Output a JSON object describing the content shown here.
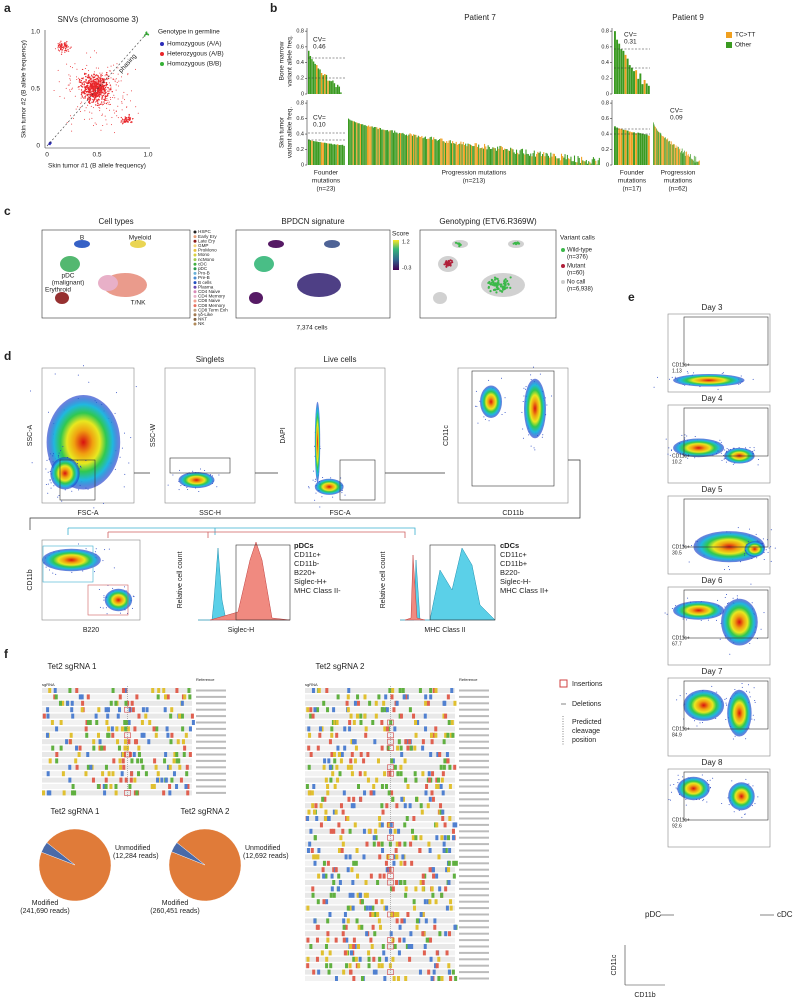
{
  "a": {
    "label": "a",
    "title": "SNVs (chromosome 3)",
    "x_label": "Skin tumor #1 (B allele frequency)",
    "y_label": "Skin tumor #2 (B allele frequency)",
    "x_ticks": [
      "0",
      "0.5",
      "1.0"
    ],
    "y_ticks": [
      "0",
      "0.5",
      "1.0"
    ],
    "annotation": "phasing",
    "legend_title": "Genotype in germline",
    "legend": [
      {
        "name": "Homozygous (A/A)",
        "color": "#2b2bb8"
      },
      {
        "name": "Heterozygous (A/B)",
        "color": "#e8262a"
      },
      {
        "name": "Homozygous (B/B)",
        "color": "#35b035"
      }
    ]
  },
  "b": {
    "label": "b",
    "patients": [
      "Patient 7",
      "Patient 9"
    ],
    "y_labels": [
      [
        "Bone marrow",
        "variant allele freq."
      ],
      [
        "Skin tumor",
        "variant allele freq."
      ]
    ],
    "y_ticks": [
      "0",
      "0.2",
      "0.4",
      "0.6",
      "0.8"
    ],
    "cv": [
      {
        "label": "CV=",
        "value": "0.46"
      },
      {
        "label": "CV=",
        "value": "0.10"
      },
      {
        "label": "CV=",
        "value": "0.31"
      },
      {
        "label": "CV=",
        "value": "0.09"
      }
    ],
    "groups": [
      [
        "Founder",
        "mutations",
        "(n=23)"
      ],
      [
        "Progression mutations",
        "(n=213)"
      ],
      [
        "Founder",
        "mutations",
        "(n=17)"
      ],
      [
        "Progression",
        "mutations",
        "(n=62)"
      ]
    ],
    "legend": [
      {
        "name": "TC>TT",
        "color": "#f0a020"
      },
      {
        "name": "Other",
        "color": "#3a9a20"
      }
    ]
  },
  "c": {
    "label": "c",
    "titles": [
      "Cell types",
      "BPDCN signature",
      "Genotyping (ETV6.R369W)"
    ],
    "clusters": [
      "B",
      "Myeloid",
      "pDC",
      "(malignant)",
      "Erythroid",
      "T/NK"
    ],
    "cell_types": [
      {
        "name": "HSPC",
        "color": "#222222"
      },
      {
        "name": "Early Ery",
        "color": "#e8a07a"
      },
      {
        "name": "Late Ery",
        "color": "#8b1a1a"
      },
      {
        "name": "GMP",
        "color": "#f2d27a"
      },
      {
        "name": "ProMono",
        "color": "#e8c040"
      },
      {
        "name": "Mono",
        "color": "#d8d040"
      },
      {
        "name": "ncMono",
        "color": "#a0c850"
      },
      {
        "name": "cDC",
        "color": "#40b040"
      },
      {
        "name": "pDC",
        "color": "#2a9a4a"
      },
      {
        "name": "Pro-B",
        "color": "#6ab0d8"
      },
      {
        "name": "Pre-B",
        "color": "#4a8ad0"
      },
      {
        "name": "B cells",
        "color": "#2050c0"
      },
      {
        "name": "Plasma",
        "color": "#6a4ab0"
      },
      {
        "name": "CD4 Naive",
        "color": "#d88ab8"
      },
      {
        "name": "CD4 Memory",
        "color": "#e8b0c8"
      },
      {
        "name": "CD8 Naive",
        "color": "#f0a090"
      },
      {
        "name": "CD8 Memory",
        "color": "#e87060"
      },
      {
        "name": "CD8 Term Exh",
        "color": "#c0a080"
      },
      {
        "name": "γδ-Like",
        "color": "#a07850"
      },
      {
        "name": "NKT",
        "color": "#806040"
      },
      {
        "name": "NK",
        "color": "#b08858"
      }
    ],
    "score_title": "Score",
    "score_ticks": [
      "1.2",
      "-0.3"
    ],
    "cell_count": "7,374 cells",
    "variant_title": "Variant calls",
    "variants": [
      {
        "name": "Wild-type",
        "count": "(n=376)",
        "color": "#3cb84a"
      },
      {
        "name": "Mutant",
        "count": "(n=60)",
        "color": "#b0203a"
      },
      {
        "name": "No call",
        "count": "(n=6,938)",
        "color": "#cccccc"
      }
    ]
  },
  "d": {
    "label": "d",
    "titles": [
      "Singlets",
      "Live cells"
    ],
    "plots": [
      {
        "x": "FSC-A",
        "y": "SSC-A"
      },
      {
        "x": "SSC-H",
        "y": "SSC-W"
      },
      {
        "x": "FSC-A",
        "y": "DAPI"
      },
      {
        "x": "CD11b",
        "y": "CD11c"
      },
      {
        "x": "B220",
        "y": "CD11b"
      },
      {
        "x": "Siglec-H",
        "y": "Relative cell count"
      },
      {
        "x": "MHC Class II",
        "y": "Relative cell count"
      }
    ],
    "pdc": [
      "pDCs",
      "CD11c+",
      "CD11b-",
      "B220+",
      "Siglec-H+",
      "MHC Class II-"
    ],
    "cdc": [
      "cDCs",
      "CD11c+",
      "CD11b+",
      "B220-",
      "Siglec-H-",
      "MHC Class II+"
    ]
  },
  "e": {
    "label": "e",
    "days": [
      {
        "day": "Day 3",
        "gate": "CD11c+",
        "percent": "1.13"
      },
      {
        "day": "Day 4",
        "gate": "CD11c+",
        "percent": "10.2"
      },
      {
        "day": "Day 5",
        "gate": "CD11c+",
        "percent": "30.5"
      },
      {
        "day": "Day 6",
        "gate": "CD11c+",
        "percent": "67.7"
      },
      {
        "day": "Day 7",
        "gate": "CD11c+",
        "percent": "84.9"
      },
      {
        "day": "Day 8",
        "gate": "CD11c+",
        "percent": "92.6"
      }
    ],
    "populations": [
      "pDC",
      "cDC"
    ],
    "x_label": "CD11b",
    "y_label": "CD11c"
  },
  "f": {
    "label": "f",
    "alignments": [
      "Tet2 sgRNA 1",
      "Tet2 sgRNA 2"
    ],
    "reference": "Reference",
    "sgrna": "sgRNA",
    "legend": [
      "Insertions",
      "Deletions",
      [
        "Predicted",
        "cleavage",
        "position"
      ]
    ],
    "pies": [
      {
        "title": "Tet2 sgRNA 1",
        "categories": [
          "Modified",
          "Unmodified"
        ],
        "values": [
          241690,
          12284
        ],
        "value_labels": [
          "(241,690 reads)",
          "(12,284 reads)"
        ],
        "colors": [
          "#e07b39",
          "#4a6aa8"
        ]
      },
      {
        "title": "Tet2 sgRNA 2",
        "categories": [
          "Modified",
          "Unmodified"
        ],
        "values": [
          260451,
          12692
        ],
        "value_labels": [
          "(260,451 reads)",
          "(12,692 reads)"
        ],
        "colors": [
          "#e07b39",
          "#4a6aa8"
        ]
      }
    ]
  }
}
